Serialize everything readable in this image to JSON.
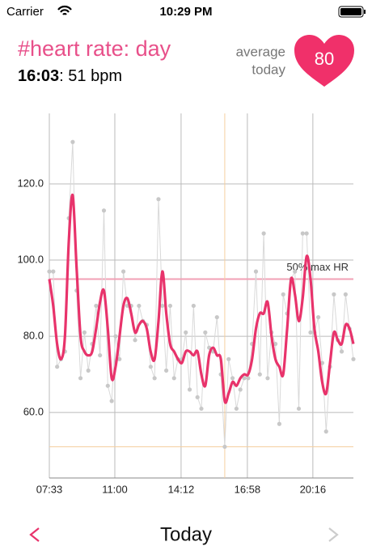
{
  "status_bar": {
    "carrier": "Carrier",
    "time": "10:29 PM"
  },
  "header": {
    "title": "#heart rate: day",
    "time": "16:03",
    "reading": ": 51 bpm",
    "average_label_1": "average",
    "average_label_2": "today",
    "average_value": "80"
  },
  "chart_data": {
    "type": "line",
    "x": [
      0,
      1,
      2,
      3,
      4,
      5,
      6,
      7,
      8,
      9,
      10,
      11,
      12,
      13,
      14,
      15,
      16,
      17,
      18,
      19,
      20,
      21,
      22,
      23,
      24,
      25,
      26,
      27,
      28,
      29,
      30,
      31,
      32,
      33,
      34,
      35,
      36,
      37,
      38,
      39,
      40,
      41,
      42,
      43,
      44,
      45,
      46,
      47,
      48,
      49,
      50,
      51,
      52,
      53,
      54,
      55,
      56,
      57,
      58,
      59,
      60,
      61,
      62,
      63,
      64,
      65,
      66,
      67,
      68,
      69,
      70,
      71,
      72,
      73,
      74,
      75,
      76,
      77,
      78
    ],
    "series": [
      {
        "color": "#d9d9d9",
        "values": [
          97,
          97,
          72,
          74,
          76,
          111,
          131,
          92,
          69,
          81,
          71,
          78,
          88,
          75,
          113,
          67,
          63,
          80,
          74,
          97,
          88,
          88,
          79,
          88,
          84,
          83,
          72,
          69,
          116,
          88,
          71,
          88,
          69,
          74,
          74,
          81,
          66,
          88,
          64,
          61,
          81,
          77,
          76,
          85,
          70,
          51,
          74,
          69,
          61,
          66,
          69,
          69,
          78,
          97,
          70,
          107,
          69,
          81,
          78,
          57,
          91,
          86,
          95,
          97,
          61,
          107,
          107,
          81,
          81,
          85,
          73,
          55,
          72,
          91,
          79,
          76,
          91,
          82,
          74
        ]
      },
      {
        "color": "#e8336b",
        "values": [
          95,
          88,
          78,
          74,
          80,
          105,
          117,
          98,
          80,
          76,
          75,
          76,
          82,
          89,
          92,
          82,
          69,
          72,
          80,
          88,
          90,
          86,
          81,
          83,
          84,
          82,
          76,
          74,
          84,
          97,
          86,
          78,
          76,
          74,
          73,
          76,
          76,
          75,
          76,
          70,
          67,
          75,
          77,
          75,
          74,
          63,
          65,
          68,
          67,
          69,
          70,
          70,
          74,
          82,
          86,
          86,
          89,
          80,
          74,
          72,
          70,
          82,
          95,
          91,
          84,
          90,
          101,
          95,
          82,
          76,
          68,
          65,
          73,
          81,
          79,
          78,
          83,
          82,
          78
        ]
      }
    ],
    "xlim": [
      0,
      78
    ],
    "xticks": [
      {
        "value": 0,
        "label": "07:33"
      },
      {
        "value": 16.8,
        "label": "11:00"
      },
      {
        "value": 33.8,
        "label": "14:12"
      },
      {
        "value": 50.8,
        "label": "16:58"
      },
      {
        "value": 67.6,
        "label": "20:16"
      }
    ],
    "ylim": [
      42.8,
      138.5
    ],
    "yticks": [
      {
        "value": 60,
        "label": "60.0"
      },
      {
        "value": 80,
        "label": "80.0"
      },
      {
        "value": 100,
        "label": "100.0"
      },
      {
        "value": 120,
        "label": "120.0"
      }
    ],
    "grid": true,
    "reference_line": {
      "label": "50% max HR",
      "value": 95,
      "color": "#f2a0b5"
    },
    "marker_x": 45,
    "marker_y": 51,
    "marker_color": "#f5cfa0"
  },
  "footer": {
    "label": "Today"
  }
}
